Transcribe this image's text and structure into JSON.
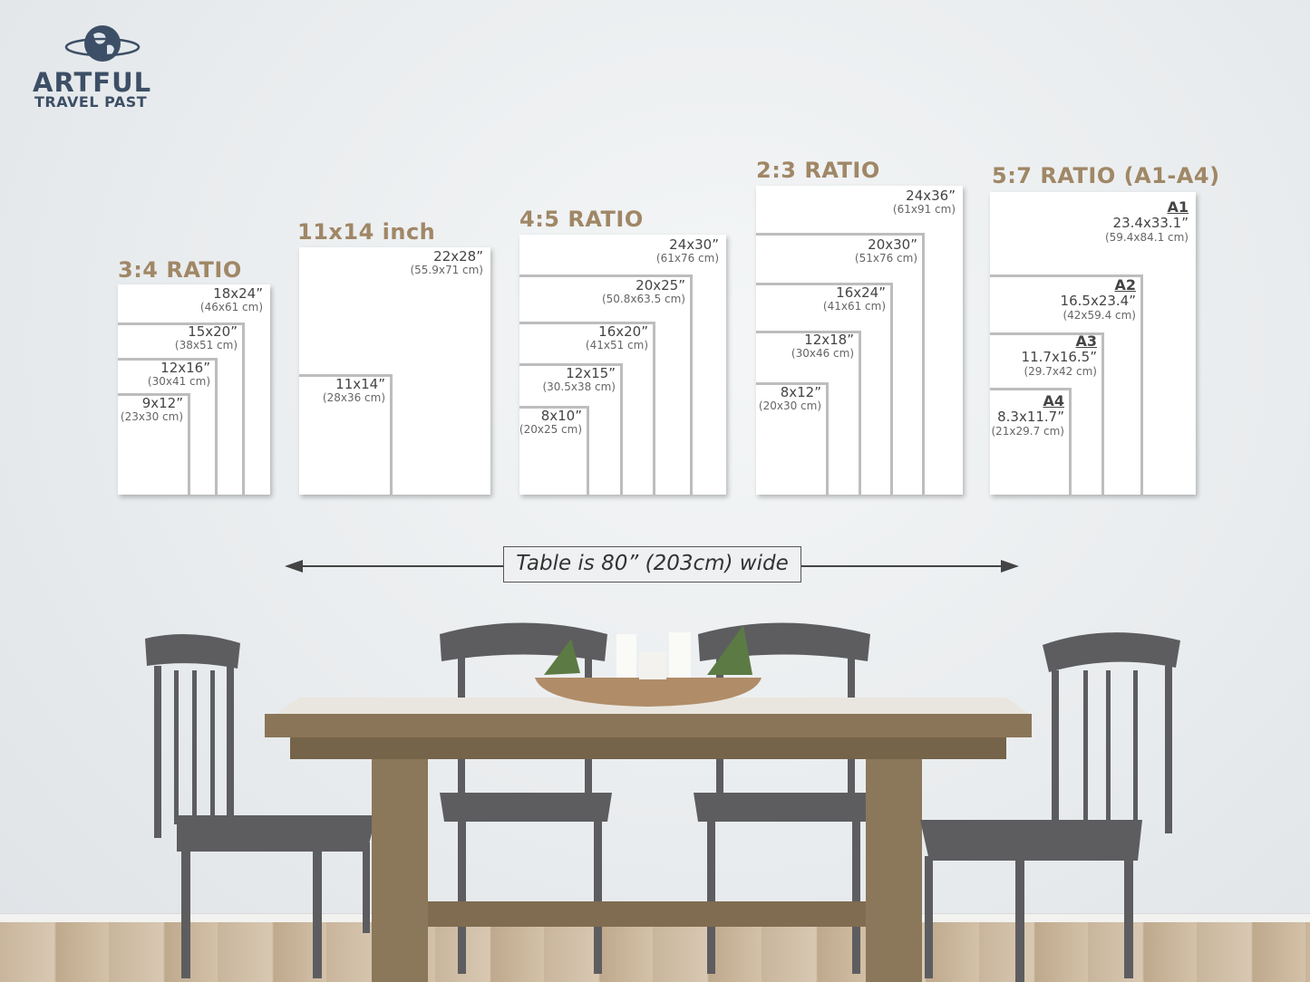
{
  "logo": {
    "line1": "ARTFUL",
    "line2": "TRAVEL PAST",
    "icon": "globe-icon",
    "color": "#3d4f66"
  },
  "title_color": "#a08766",
  "groups": [
    {
      "title": "3:4 RATIO",
      "sizes": [
        {
          "inch": "18x24”",
          "cm": "(46x61 cm)"
        },
        {
          "inch": "15x20”",
          "cm": "(38x51 cm)"
        },
        {
          "inch": "12x16”",
          "cm": "(30x41 cm)"
        },
        {
          "inch": "9x12”",
          "cm": "(23x30 cm)"
        }
      ]
    },
    {
      "title": "11x14 inch",
      "sizes": [
        {
          "inch": "22x28”",
          "cm": "(55.9x71 cm)"
        },
        {
          "inch": "11x14”",
          "cm": "(28x36 cm)"
        }
      ]
    },
    {
      "title": "4:5 RATIO",
      "sizes": [
        {
          "inch": "24x30”",
          "cm": "(61x76 cm)"
        },
        {
          "inch": "20x25”",
          "cm": "(50.8x63.5 cm)"
        },
        {
          "inch": "16x20”",
          "cm": "(41x51 cm)"
        },
        {
          "inch": "12x15”",
          "cm": "(30.5x38 cm)"
        },
        {
          "inch": "8x10”",
          "cm": "(20x25 cm)"
        }
      ]
    },
    {
      "title": "2:3 RATIO",
      "sizes": [
        {
          "inch": "24x36”",
          "cm": "(61x91 cm)"
        },
        {
          "inch": "20x30”",
          "cm": "(51x76 cm)"
        },
        {
          "inch": "16x24”",
          "cm": "(41x61 cm)"
        },
        {
          "inch": "12x18”",
          "cm": "(30x46 cm)"
        },
        {
          "inch": "8x12”",
          "cm": "(20x30 cm)"
        }
      ]
    },
    {
      "title": "5:7 RATIO (A1-A4)",
      "sizes": [
        {
          "name": "A1",
          "inch": "23.4x33.1”",
          "cm": "(59.4x84.1 cm)"
        },
        {
          "name": "A2",
          "inch": "16.5x23.4”",
          "cm": "(42x59.4 cm)"
        },
        {
          "name": "A3",
          "inch": "11.7x16.5”",
          "cm": "(29.7x42 cm)"
        },
        {
          "name": "A4",
          "inch": "8.3x11.7”",
          "cm": "(21x29.7 cm)"
        }
      ]
    }
  ],
  "table_note": "Table is 80” (203cm) wide"
}
